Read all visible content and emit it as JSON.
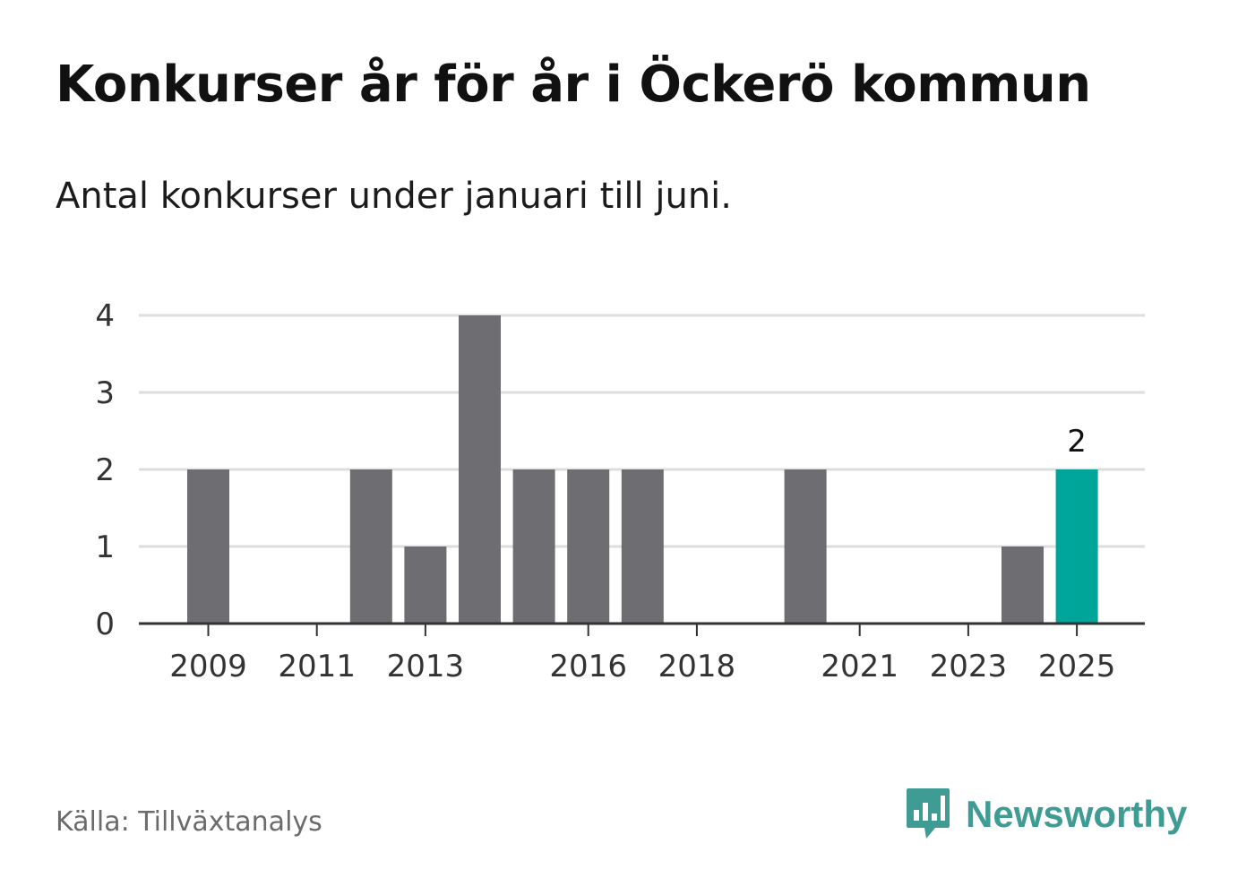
{
  "title": "Konkurser år för år i Öckerö kommun",
  "subtitle": "Antal konkurser under januari till juni.",
  "source": "Källa: Tillväxtanalys",
  "brand": "Newsworthy",
  "colors": {
    "bar": "#6e6d72",
    "highlight": "#00a59a",
    "grid": "#dddddd",
    "axis": "#333333",
    "brand": "#3f9c95"
  },
  "chart_data": {
    "type": "bar",
    "categories": [
      "2009",
      "2010",
      "2011",
      "2012",
      "2013",
      "2014",
      "2015",
      "2016",
      "2017",
      "2018",
      "2019",
      "2020",
      "2021",
      "2022",
      "2023",
      "2024",
      "2025"
    ],
    "values": [
      2,
      0,
      0,
      2,
      1,
      4,
      2,
      2,
      2,
      0,
      0,
      2,
      0,
      0,
      0,
      1,
      2
    ],
    "tick_labels": [
      "2009",
      "2011",
      "2013",
      "2016",
      "2018",
      "2021",
      "2023",
      "2025"
    ],
    "highlight": "2025",
    "highlight_label": "2",
    "ylim": [
      0,
      4
    ],
    "yticks": [
      0,
      1,
      2,
      3,
      4
    ],
    "grid": true,
    "legend": "none"
  }
}
